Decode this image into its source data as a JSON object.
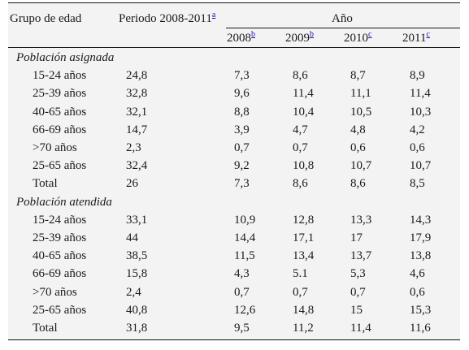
{
  "header": {
    "col_group": "Grupo de edad",
    "col_period": "Periodo 2008-2011",
    "col_period_note": "a",
    "col_year": "Año",
    "years": [
      {
        "label": "2008",
        "note": "b"
      },
      {
        "label": "2009",
        "note": "b"
      },
      {
        "label": "2010",
        "note": "c"
      },
      {
        "label": "2011",
        "note": "c"
      }
    ]
  },
  "sections": [
    {
      "title": "Población asignada",
      "rows": [
        {
          "group": "15-24 años",
          "period": "24,8",
          "y2008": "7,3",
          "y2009": "8,6",
          "y2010": "8,7",
          "y2011": "8,9"
        },
        {
          "group": "25-39 años",
          "period": "32,8",
          "y2008": "9,6",
          "y2009": "11,4",
          "y2010": "11,1",
          "y2011": "11,4"
        },
        {
          "group": "40-65 años",
          "period": "32,1",
          "y2008": "8,8",
          "y2009": "10,4",
          "y2010": "10,5",
          "y2011": "10,3"
        },
        {
          "group": "66-69 años",
          "period": "14,7",
          "y2008": "3,9",
          "y2009": "4,7",
          "y2010": "4,8",
          "y2011": "4,2"
        },
        {
          "group": ">70 años",
          "period": "2,3",
          "y2008": "0,7",
          "y2009": "0,7",
          "y2010": "0,6",
          "y2011": "0,6"
        },
        {
          "group": "25-65 años",
          "period": "32,4",
          "y2008": "9,2",
          "y2009": "10,8",
          "y2010": "10,7",
          "y2011": "10,7"
        },
        {
          "group": "Total",
          "period": "26",
          "y2008": "7,3",
          "y2009": "8,6",
          "y2010": "8,6",
          "y2011": "8,5"
        }
      ]
    },
    {
      "title": "Población atendida",
      "rows": [
        {
          "group": "15-24 años",
          "period": "33,1",
          "y2008": "10,9",
          "y2009": "12,8",
          "y2010": "13,3",
          "y2011": "14,3"
        },
        {
          "group": "25-39 años",
          "period": "44",
          "y2008": "14,4",
          "y2009": "17,1",
          "y2010": "17",
          "y2011": "17,9"
        },
        {
          "group": "40-65 años",
          "period": "38,5",
          "y2008": "11,5",
          "y2009": "13,4",
          "y2010": "13,7",
          "y2011": "13,8"
        },
        {
          "group": "66-69 años",
          "period": "15,8",
          "y2008": "4,3",
          "y2009": "5.1",
          "y2010": "5,3",
          "y2011": "4,6"
        },
        {
          "group": ">70 años",
          "period": "2,4",
          "y2008": "0,7",
          "y2009": "0,7",
          "y2010": "0,7",
          "y2011": "0,6"
        },
        {
          "group": "25-65 años",
          "period": "40,8",
          "y2008": "12,6",
          "y2009": "14,8",
          "y2010": "15",
          "y2011": "15,3"
        },
        {
          "group": "Total",
          "period": "31,8",
          "y2008": "9,5",
          "y2009": "11,2",
          "y2010": "11,4",
          "y2011": "11,6"
        }
      ]
    }
  ]
}
